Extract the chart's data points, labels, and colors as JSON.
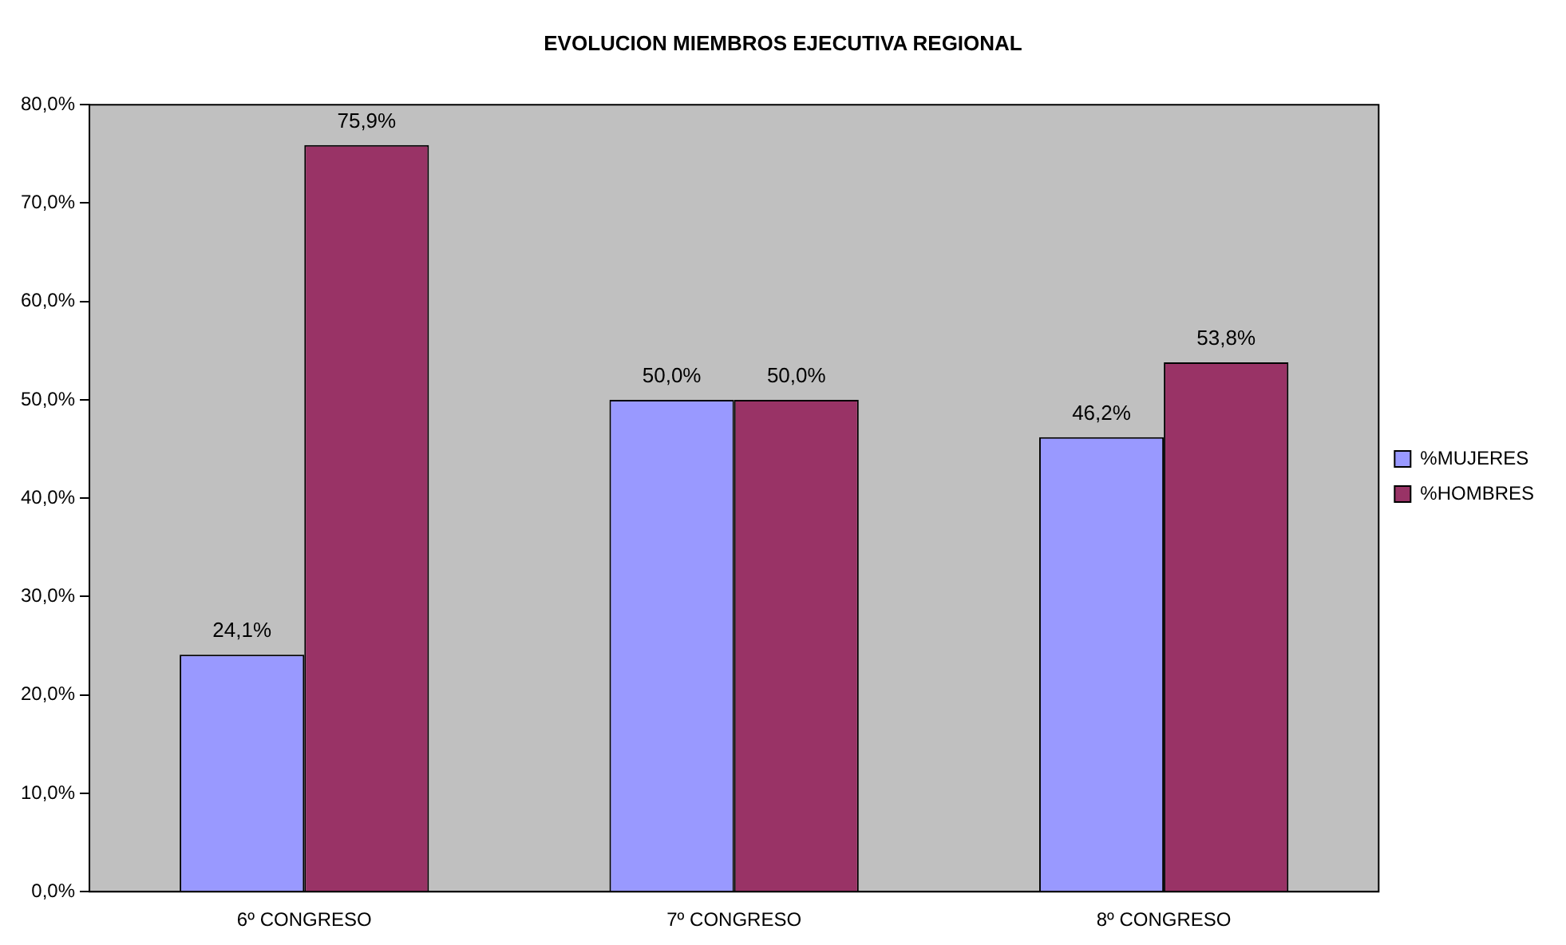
{
  "chart_data": {
    "type": "bar",
    "title": "EVOLUCION MIEMBROS EJECUTIVA REGIONAL",
    "categories": [
      "6º CONGRESO",
      "7º CONGRESO",
      "8º CONGRESO"
    ],
    "series": [
      {
        "name": "%MUJERES",
        "color": "#9999ff",
        "values": [
          24.1,
          50.0,
          46.2
        ],
        "value_labels": [
          "24,1%",
          "50,0%",
          "46,2%"
        ]
      },
      {
        "name": "%HOMBRES",
        "color": "#993366",
        "values": [
          75.9,
          50.0,
          53.8
        ],
        "value_labels": [
          "75,9%",
          "50,0%",
          "53,8%"
        ]
      }
    ],
    "ylim": [
      0,
      80
    ],
    "yticks": [
      {
        "value": 0,
        "label": "0,0%"
      },
      {
        "value": 10,
        "label": "10,0%"
      },
      {
        "value": 20,
        "label": "20,0%"
      },
      {
        "value": 30,
        "label": "30,0%"
      },
      {
        "value": 40,
        "label": "40,0%"
      },
      {
        "value": 50,
        "label": "50,0%"
      },
      {
        "value": 60,
        "label": "60,0%"
      },
      {
        "value": 70,
        "label": "70,0%"
      },
      {
        "value": 80,
        "label": "80,0%"
      }
    ],
    "grid": false,
    "legend": "right"
  }
}
